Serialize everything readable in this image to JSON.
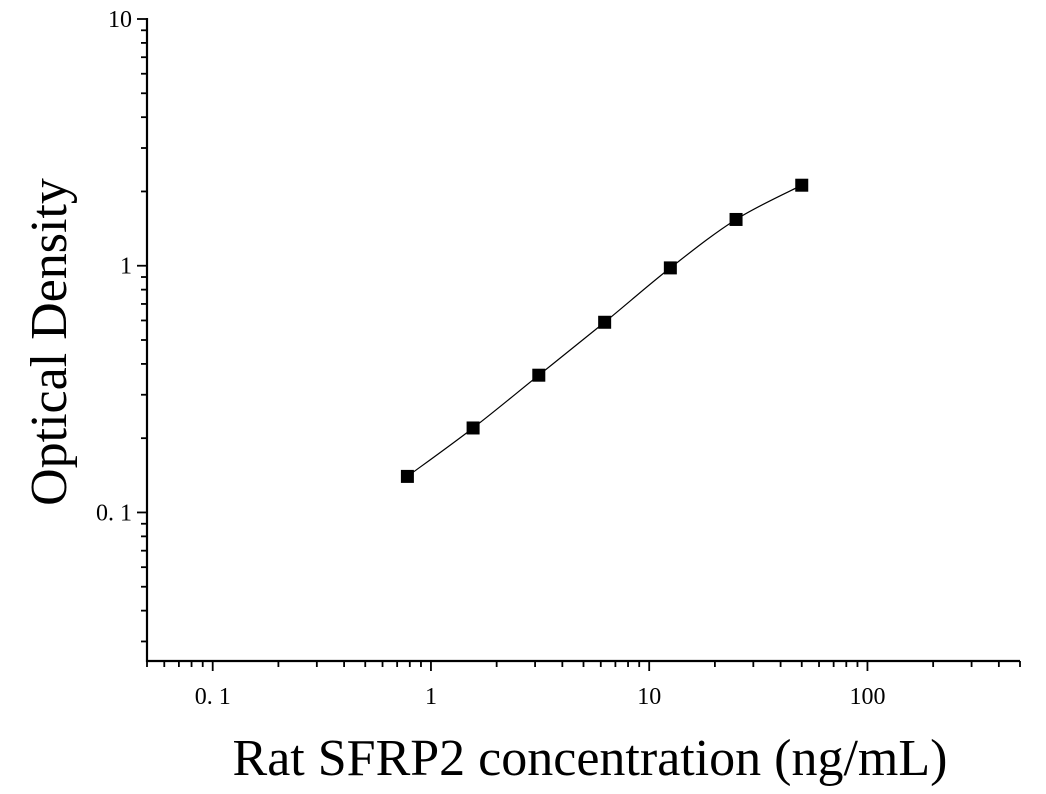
{
  "chart_data": {
    "type": "scatter",
    "title": "",
    "xlabel": "Rat SFRP2 concentration (ng/mL)",
    "ylabel": "Optical Density",
    "x_scale": "log",
    "y_scale": "log",
    "xlim": [
      0.05,
      500
    ],
    "ylim": [
      0.025,
      10
    ],
    "x_ticks": [
      {
        "value": 0.1,
        "label": "0. 1"
      },
      {
        "value": 1,
        "label": "1"
      },
      {
        "value": 10,
        "label": "10"
      },
      {
        "value": 100,
        "label": "100"
      }
    ],
    "y_ticks": [
      {
        "value": 0.1,
        "label": "0. 1"
      },
      {
        "value": 1,
        "label": "1"
      },
      {
        "value": 10,
        "label": "10"
      }
    ],
    "grid": false,
    "legend": "none",
    "series": [
      {
        "marker": "square",
        "color": "#000000",
        "fit_line": true,
        "points": [
          {
            "x": 0.78,
            "y": 0.14
          },
          {
            "x": 1.56,
            "y": 0.22
          },
          {
            "x": 3.12,
            "y": 0.36
          },
          {
            "x": 6.25,
            "y": 0.59
          },
          {
            "x": 12.5,
            "y": 0.98
          },
          {
            "x": 25,
            "y": 1.54
          },
          {
            "x": 50,
            "y": 2.12
          }
        ]
      }
    ]
  }
}
